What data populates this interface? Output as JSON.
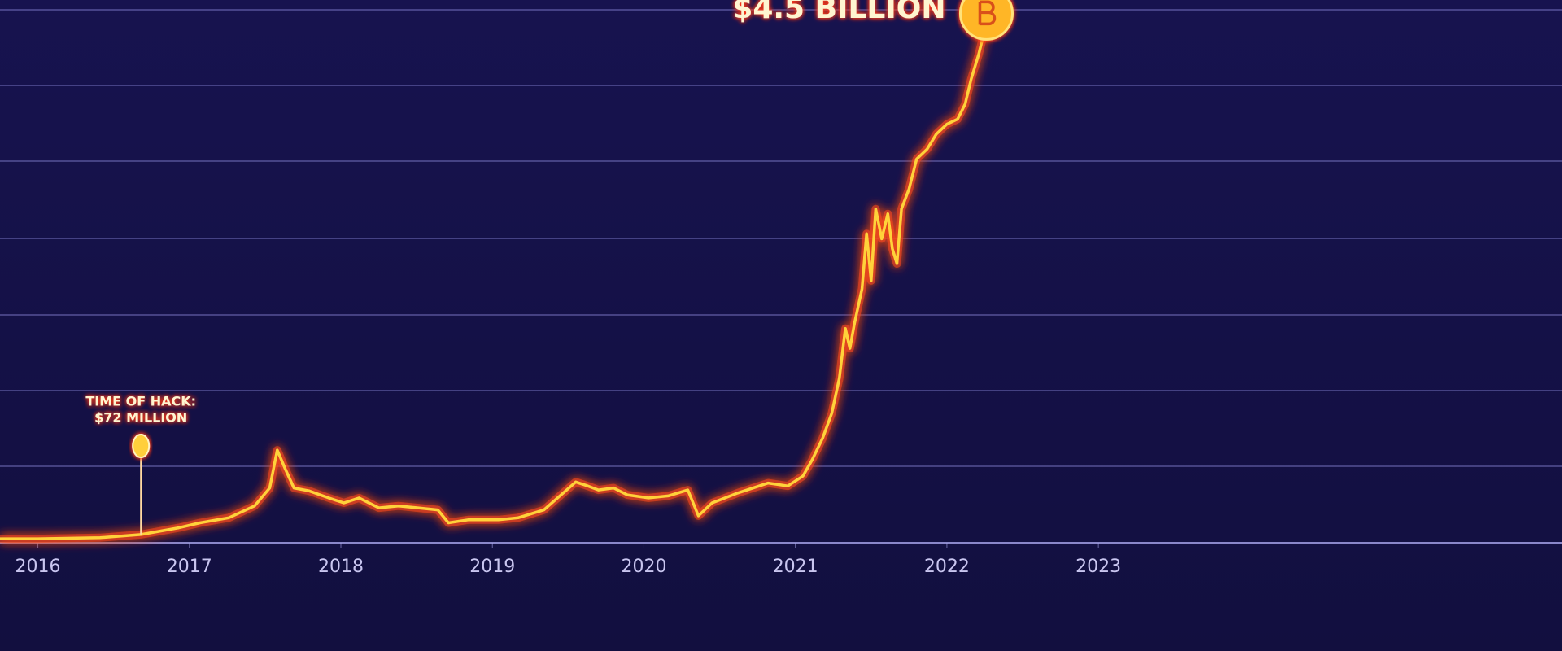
{
  "chart_data": {
    "type": "line",
    "annotations": [
      [
        "TIME OF HACK:",
        "$72 MILLION"
      ],
      [
        "$4.5 BILLION"
      ]
    ],
    "x": [
      2015.75,
      2016.0,
      2016.41,
      2016.68,
      2016.93,
      2017.07,
      2017.26,
      2017.43,
      2017.53,
      2017.58,
      2017.63,
      2017.69,
      2017.79,
      2017.92,
      2018.02,
      2018.12,
      2018.25,
      2018.38,
      2018.51,
      2018.64,
      2018.71,
      2018.84,
      2019.04,
      2019.17,
      2019.34,
      2019.43,
      2019.55,
      2019.63,
      2019.7,
      2019.8,
      2019.89,
      2020.03,
      2020.16,
      2020.29,
      2020.36,
      2020.45,
      2020.62,
      2020.82,
      2020.95,
      2021.05,
      2021.11,
      2021.18,
      2021.24,
      2021.29,
      2021.33,
      2021.36,
      2021.39,
      2021.44,
      2021.47,
      2021.5,
      2021.53,
      2021.57,
      2021.61,
      2021.64,
      2021.67,
      2021.7,
      2021.75,
      2021.8,
      2021.87,
      2021.93,
      2022.0,
      2022.07,
      2022.12,
      2022.16,
      2022.21,
      2022.25
    ],
    "series": [
      {
        "color": "#ffd23a",
        "values": [
          35,
          35,
          44,
          72,
          131,
          175,
          219,
          323,
          481,
          813,
          656,
          481,
          455,
          393,
          350,
          393,
          306,
          323,
          306,
          288,
          175,
          201,
          201,
          219,
          288,
          393,
          533,
          498,
          463,
          481,
          420,
          393,
          411,
          463,
          236,
          350,
          437,
          524,
          498,
          586,
          726,
          918,
          1136,
          1442,
          1879,
          1705,
          1923,
          2229,
          2710,
          2299,
          2928,
          2666,
          2885,
          2579,
          2448,
          2928,
          3103,
          3365,
          3453,
          3584,
          3671,
          3715,
          3846,
          4065,
          4283,
          4500
        ]
      }
    ],
    "xlim": [
      2015.75,
      2026.06
    ],
    "xticks": [
      2016,
      2017,
      2018,
      2019,
      2020,
      2021,
      2022,
      2023
    ],
    "ylim": [
      0,
      4760
    ]
  }
}
